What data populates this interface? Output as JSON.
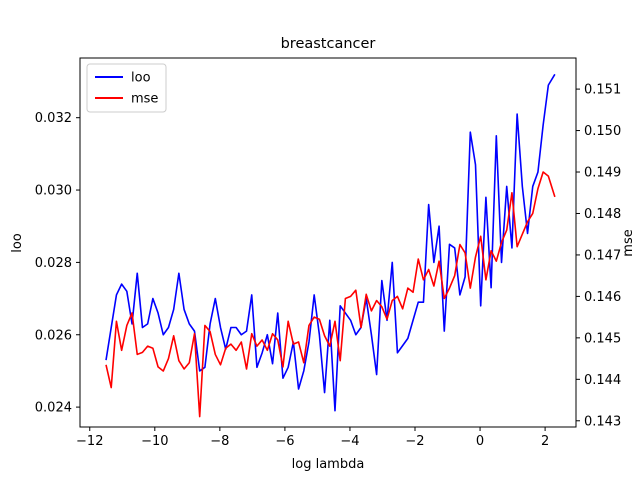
{
  "chart_data": {
    "type": "line",
    "title": "breastcancer",
    "xlabel": "log lambda",
    "ylabel_left": "loo",
    "ylabel_right": "mse",
    "xlim": [
      -12.3,
      2.95
    ],
    "ylim_left": [
      0.02345,
      0.03365
    ],
    "ylim_right": [
      0.14285,
      0.15175
    ],
    "x_ticks": [
      -12,
      -10,
      -8,
      -6,
      -4,
      -2,
      0,
      2
    ],
    "x_tick_labels": [
      "−12",
      "−10",
      "−8",
      "−6",
      "−4",
      "−2",
      "0",
      "2"
    ],
    "y_left_ticks": [
      0.024,
      0.026,
      0.028,
      0.03,
      0.032
    ],
    "y_left_tick_labels": [
      "0.024",
      "0.026",
      "0.028",
      "0.030",
      "0.032"
    ],
    "y_right_ticks": [
      0.143,
      0.144,
      0.145,
      0.146,
      0.147,
      0.148,
      0.149,
      0.15,
      0.151
    ],
    "y_right_tick_labels": [
      "0.143",
      "0.144",
      "0.145",
      "0.146",
      "0.147",
      "0.148",
      "0.149",
      "0.150",
      "0.151"
    ],
    "grid": false,
    "legend_position": "top-left",
    "x": [
      -11.5,
      -11.34,
      -11.18,
      -11.02,
      -10.86,
      -10.7,
      -10.54,
      -10.38,
      -10.22,
      -10.06,
      -9.9,
      -9.74,
      -9.58,
      -9.42,
      -9.26,
      -9.1,
      -8.94,
      -8.78,
      -8.62,
      -8.46,
      -8.3,
      -8.14,
      -7.98,
      -7.82,
      -7.66,
      -7.5,
      -7.34,
      -7.18,
      -7.02,
      -6.86,
      -6.7,
      -6.54,
      -6.38,
      -6.22,
      -6.06,
      -5.9,
      -5.74,
      -5.58,
      -5.42,
      -5.26,
      -5.1,
      -4.94,
      -4.78,
      -4.62,
      -4.46,
      -4.3,
      -4.14,
      -3.98,
      -3.82,
      -3.66,
      -3.5,
      -3.34,
      -3.18,
      -3.02,
      -2.86,
      -2.7,
      -2.54,
      -2.38,
      -2.22,
      -2.06,
      -1.9,
      -1.74,
      -1.58,
      -1.42,
      -1.26,
      -1.1,
      -0.94,
      -0.78,
      -0.62,
      -0.46,
      -0.3,
      -0.14,
      0.02,
      0.18,
      0.34,
      0.5,
      0.66,
      0.82,
      0.98,
      1.14,
      1.3,
      1.46,
      1.62,
      1.78,
      1.94,
      2.1,
      2.3
    ],
    "series": [
      {
        "name": "loo",
        "axis": "left",
        "color": "#0000ff",
        "values": [
          0.0253,
          0.0262,
          0.0271,
          0.0274,
          0.0272,
          0.0263,
          0.0277,
          0.0262,
          0.0263,
          0.027,
          0.0266,
          0.026,
          0.0262,
          0.0267,
          0.0277,
          0.0267,
          0.0263,
          0.0261,
          0.025,
          0.0251,
          0.0263,
          0.027,
          0.0262,
          0.0256,
          0.0262,
          0.0262,
          0.026,
          0.0261,
          0.0271,
          0.0251,
          0.0255,
          0.026,
          0.0252,
          0.0266,
          0.0248,
          0.0251,
          0.0258,
          0.0245,
          0.025,
          0.0258,
          0.0271,
          0.026,
          0.0244,
          0.0264,
          0.0239,
          0.0268,
          0.0266,
          0.0264,
          0.026,
          0.0262,
          0.027,
          0.026,
          0.0249,
          0.0275,
          0.0264,
          0.028,
          0.0255,
          0.0257,
          0.0259,
          0.0264,
          0.0269,
          0.0269,
          0.0296,
          0.028,
          0.029,
          0.0261,
          0.0285,
          0.0284,
          0.0271,
          0.0276,
          0.0316,
          0.0307,
          0.0268,
          0.0298,
          0.0273,
          0.0315,
          0.028,
          0.0301,
          0.0284,
          0.0321,
          0.0301,
          0.0288,
          0.0301,
          0.0305,
          0.0318,
          0.0329,
          0.0332
        ]
      },
      {
        "name": "mse",
        "axis": "right",
        "color": "#ff0000",
        "values": [
          0.14435,
          0.1438,
          0.1454,
          0.1447,
          0.1453,
          0.1456,
          0.1446,
          0.14465,
          0.1448,
          0.14475,
          0.1443,
          0.1442,
          0.1445,
          0.14505,
          0.14445,
          0.14425,
          0.1444,
          0.1451,
          0.1431,
          0.1453,
          0.14515,
          0.1446,
          0.14435,
          0.14475,
          0.14485,
          0.1447,
          0.1449,
          0.14425,
          0.1451,
          0.1448,
          0.14495,
          0.1447,
          0.1451,
          0.14495,
          0.1443,
          0.1454,
          0.14485,
          0.1449,
          0.1444,
          0.1453,
          0.1455,
          0.14545,
          0.14505,
          0.1448,
          0.1454,
          0.14445,
          0.14595,
          0.146,
          0.14615,
          0.14525,
          0.14605,
          0.14565,
          0.1459,
          0.14575,
          0.14545,
          0.1459,
          0.146,
          0.1457,
          0.1462,
          0.1461,
          0.1469,
          0.1464,
          0.14665,
          0.14625,
          0.14685,
          0.14595,
          0.1462,
          0.1465,
          0.14725,
          0.14705,
          0.1462,
          0.14695,
          0.14745,
          0.1464,
          0.1471,
          0.14685,
          0.1473,
          0.1476,
          0.1485,
          0.1472,
          0.1475,
          0.1478,
          0.148,
          0.1486,
          0.149,
          0.1489,
          0.1484
        ]
      }
    ]
  }
}
